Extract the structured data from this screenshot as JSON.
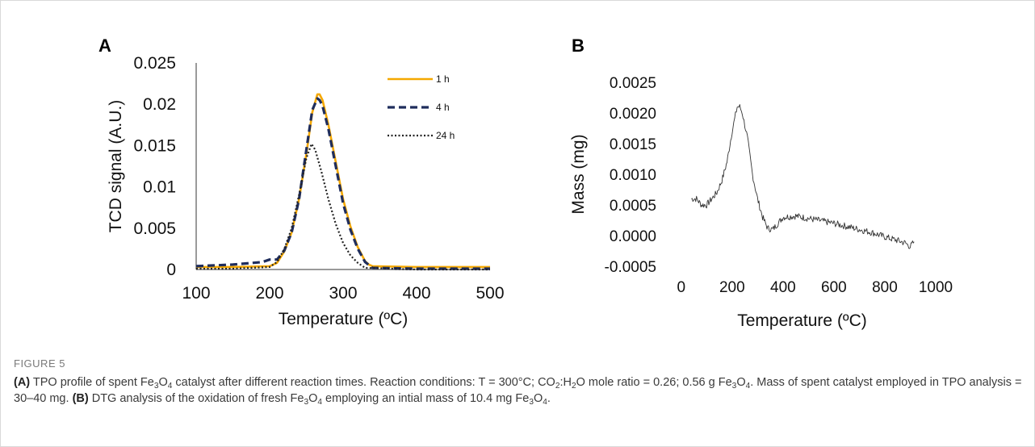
{
  "figure": {
    "label": "FIGURE 5",
    "caption": {
      "a_tag": "(A)",
      "a_text_html": " TPO profile of spent Fe<sub>3</sub>O<sub>4</sub> catalyst after different reaction times. Reaction conditions: T = 300°C; CO<sub>2</sub>:H<sub>2</sub>O mole ratio = 0.26; 0.56 g Fe<sub>3</sub>O<sub>4</sub>. Mass of spent catalyst employed in TPO analysis = 30–40 mg. ",
      "b_tag": "(B)",
      "b_text_html": " DTG analysis of the oxidation of fresh Fe<sub>3</sub>O<sub>4</sub> employing an intial mass of 10.4 mg Fe<sub>3</sub>O<sub>4</sub>."
    }
  },
  "chart_data": [
    {
      "panel": "A",
      "type": "line",
      "xlabel": "Temperature (ºC)",
      "ylabel": "TCD signal (A.U.)",
      "xlim": [
        100,
        500
      ],
      "ylim": [
        0,
        0.025
      ],
      "xticks": [
        "100",
        "200",
        "300",
        "400",
        "500"
      ],
      "yticks": [
        "0",
        "0.005",
        "0.01",
        "0.015",
        "0.02",
        "0.025"
      ],
      "grid": false,
      "legend": "top-right",
      "series": [
        {
          "name": "1 h",
          "color": "#f5a800",
          "style": "solid",
          "x": [
            100,
            150,
            200,
            210,
            220,
            230,
            240,
            250,
            258,
            265,
            268,
            272,
            280,
            290,
            300,
            310,
            320,
            330,
            335,
            340,
            400,
            500
          ],
          "y": [
            0.0003,
            0.0003,
            0.0004,
            0.0008,
            0.0022,
            0.0045,
            0.0085,
            0.014,
            0.019,
            0.0212,
            0.0212,
            0.0205,
            0.0175,
            0.013,
            0.0085,
            0.0052,
            0.0027,
            0.001,
            0.0006,
            0.0004,
            0.0003,
            0.0003
          ]
        },
        {
          "name": "4 h",
          "color": "#1f2d5c",
          "style": "dashed",
          "x": [
            100,
            150,
            190,
            200,
            210,
            220,
            230,
            240,
            250,
            258,
            265,
            268,
            272,
            280,
            290,
            300,
            310,
            320,
            330,
            340,
            400,
            500
          ],
          "y": [
            0.0004,
            0.0006,
            0.0009,
            0.0012,
            0.0012,
            0.0023,
            0.0045,
            0.0085,
            0.0145,
            0.0193,
            0.0207,
            0.0205,
            0.0198,
            0.017,
            0.0125,
            0.008,
            0.0048,
            0.0025,
            0.0009,
            0.0002,
            0.0001,
            0.0001
          ]
        },
        {
          "name": "24 h",
          "color": "#222222",
          "style": "dotted",
          "x": [
            100,
            150,
            200,
            210,
            220,
            230,
            240,
            250,
            257,
            262,
            270,
            280,
            290,
            300,
            310,
            320,
            330,
            400,
            500
          ],
          "y": [
            0.0001,
            0.0001,
            0.0003,
            0.0009,
            0.0025,
            0.005,
            0.009,
            0.0135,
            0.0152,
            0.0145,
            0.012,
            0.0085,
            0.0055,
            0.0032,
            0.0017,
            0.0008,
            0.0002,
            0.0,
            0.0
          ]
        }
      ]
    },
    {
      "panel": "B",
      "type": "line",
      "xlabel": "Temperature (ºC)",
      "ylabel": "Mass (mg)",
      "xlim": [
        -50,
        1000
      ],
      "ylim": [
        -0.0005,
        0.0025
      ],
      "xticks": [
        "0",
        "200",
        "400",
        "600",
        "800",
        "1000"
      ],
      "yticks": [
        "-0.0005",
        "0.0000",
        "0.0005",
        "0.0010",
        "0.0015",
        "0.0020",
        "0.0025"
      ],
      "grid": false,
      "series": [
        {
          "color": "#333333",
          "x": [
            40,
            60,
            80,
            100,
            120,
            140,
            160,
            180,
            200,
            210,
            220,
            230,
            240,
            250,
            260,
            270,
            280,
            300,
            320,
            340,
            360,
            380,
            400,
            450,
            500,
            550,
            600,
            650,
            700,
            750,
            800,
            850,
            880,
            900,
            915
          ],
          "y": [
            0.0006,
            0.0006,
            0.0005,
            0.0005,
            0.0006,
            0.0007,
            0.0009,
            0.0012,
            0.0017,
            0.0019,
            0.0021,
            0.0021,
            0.002,
            0.0018,
            0.0016,
            0.0013,
            0.001,
            0.0006,
            0.0003,
            0.00012,
            0.0001,
            0.0002,
            0.0003,
            0.00032,
            0.00028,
            0.00024,
            0.0002,
            0.00015,
            0.0001,
            5e-05,
            -2e-05,
            -8e-05,
            -0.00012,
            -0.00018,
            -0.0001
          ]
        }
      ]
    }
  ]
}
